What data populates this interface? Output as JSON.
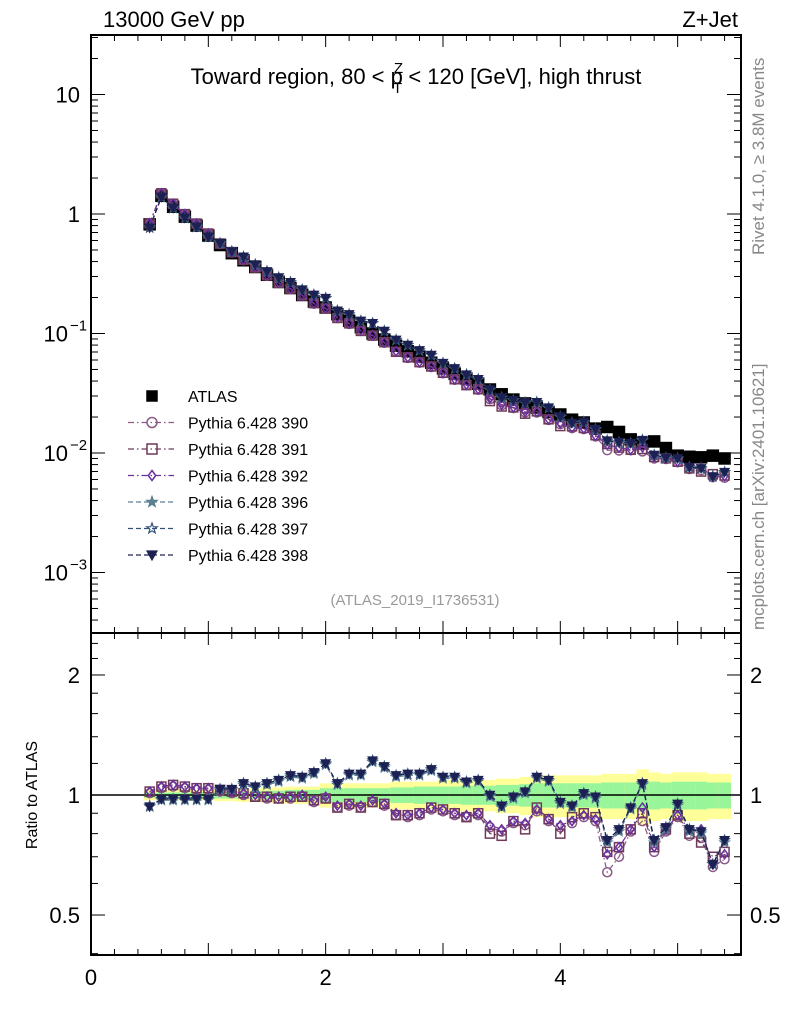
{
  "header": {
    "left": "13000 GeV pp",
    "right": "Z+Jet"
  },
  "side_text": {
    "top": "Rivet 4.1.0, ≥ 3.8M events",
    "bottom": "mcplots.cern.ch [arXiv:2401.10621]"
  },
  "watermark": "(ATLAS_2019_I1736531)",
  "chart_data": {
    "type": "scatter",
    "title": {
      "prefix": "Toward region, 80 < p",
      "sup": "Z",
      "sub": "T",
      "suffix": " < 120 [GeV], high thrust"
    },
    "xlabel": "",
    "ylabel": "",
    "ratio_ylabel": "Ratio to ATLAS",
    "xlim": [
      0,
      5.54
    ],
    "ylim": [
      0.00031,
      31
    ],
    "yscale": "log",
    "ratio_ylim": [
      0.4,
      2.55
    ],
    "ratio_yscale": "log",
    "x_ticks": [
      "0",
      "2",
      "4"
    ],
    "x_tick_values": [
      0,
      2,
      4
    ],
    "y_ticks": [
      {
        "v": 10,
        "base": "10",
        "exp": ""
      },
      {
        "v": 1,
        "base": "1",
        "exp": ""
      },
      {
        "v": 0.1,
        "base": "10",
        "exp": "−1"
      },
      {
        "v": 0.01,
        "base": "10",
        "exp": "−2"
      },
      {
        "v": 0.001,
        "base": "10",
        "exp": "−3"
      }
    ],
    "ratio_ticks": [
      {
        "v": 0.5,
        "label": "0.5"
      },
      {
        "v": 1,
        "label": "1"
      },
      {
        "v": 2,
        "label": "2"
      }
    ],
    "legend_position": "middle-left",
    "x": [
      0.5,
      0.6,
      0.7,
      0.8,
      0.9,
      1.0,
      1.1,
      1.2,
      1.3,
      1.4,
      1.5,
      1.6,
      1.7,
      1.8,
      1.9,
      2.0,
      2.1,
      2.2,
      2.3,
      2.4,
      2.5,
      2.6,
      2.7,
      2.8,
      2.9,
      3.0,
      3.1,
      3.2,
      3.3,
      3.4,
      3.5,
      3.6,
      3.7,
      3.8,
      3.9,
      4.0,
      4.1,
      4.2,
      4.3,
      4.4,
      4.5,
      4.6,
      4.7,
      4.8,
      4.9,
      5.0,
      5.1,
      5.2,
      5.3,
      5.4
    ],
    "data": {
      "name": "ATLAS",
      "color": "#000000",
      "marker": "square-filled",
      "values": [
        0.82,
        1.42,
        1.15,
        0.95,
        0.8,
        0.66,
        0.55,
        0.47,
        0.41,
        0.36,
        0.31,
        0.27,
        0.24,
        0.21,
        0.185,
        0.165,
        0.145,
        0.128,
        0.113,
        0.1,
        0.089,
        0.079,
        0.071,
        0.064,
        0.057,
        0.051,
        0.046,
        0.042,
        0.038,
        0.034,
        0.031,
        0.028,
        0.026,
        0.024,
        0.022,
        0.021,
        0.019,
        0.018,
        0.016,
        0.0165,
        0.015,
        0.013,
        0.012,
        0.0125,
        0.011,
        0.0095,
        0.0093,
        0.0092,
        0.0095,
        0.009
      ],
      "band_total": [
        0.03,
        0.03,
        0.03,
        0.03,
        0.03,
        0.03,
        0.035,
        0.035,
        0.04,
        0.04,
        0.045,
        0.045,
        0.05,
        0.05,
        0.05,
        0.07,
        0.07,
        0.07,
        0.07,
        0.07,
        0.07,
        0.08,
        0.08,
        0.08,
        0.08,
        0.09,
        0.09,
        0.09,
        0.09,
        0.09,
        0.1,
        0.1,
        0.11,
        0.12,
        0.12,
        0.12,
        0.12,
        0.12,
        0.12,
        0.13,
        0.13,
        0.13,
        0.16,
        0.14,
        0.13,
        0.14,
        0.14,
        0.14,
        0.13,
        0.13
      ],
      "band_stat": [
        0.015,
        0.015,
        0.015,
        0.015,
        0.015,
        0.015,
        0.02,
        0.02,
        0.02,
        0.02,
        0.025,
        0.025,
        0.03,
        0.03,
        0.03,
        0.04,
        0.04,
        0.04,
        0.04,
        0.04,
        0.04,
        0.045,
        0.045,
        0.05,
        0.05,
        0.05,
        0.05,
        0.055,
        0.055,
        0.055,
        0.06,
        0.06,
        0.065,
        0.07,
        0.07,
        0.07,
        0.07,
        0.07,
        0.07,
        0.075,
        0.075,
        0.075,
        0.09,
        0.08,
        0.075,
        0.08,
        0.08,
        0.08,
        0.075,
        0.075
      ]
    },
    "series": [
      {
        "name": "Pythia 6.428 390",
        "color": "#8a5a88",
        "marker": "circle-open",
        "line": "dashdot",
        "ratio": [
          1.01,
          1.04,
          1.05,
          1.04,
          1.03,
          1.03,
          1.02,
          1.01,
          1.0,
          0.99,
          0.98,
          0.98,
          0.98,
          0.99,
          0.96,
          0.98,
          0.93,
          0.94,
          0.93,
          0.96,
          0.94,
          0.89,
          0.88,
          0.89,
          0.92,
          0.91,
          0.89,
          0.88,
          0.89,
          0.83,
          0.81,
          0.85,
          0.84,
          0.91,
          0.86,
          0.83,
          0.85,
          0.88,
          0.86,
          0.64,
          0.7,
          0.81,
          0.86,
          0.72,
          0.81,
          0.88,
          0.79,
          0.78,
          0.66,
          0.69
        ]
      },
      {
        "name": "Pythia 6.428 391",
        "color": "#6e3a58",
        "marker": "square-open",
        "line": "dashdot",
        "ratio": [
          1.02,
          1.05,
          1.06,
          1.05,
          1.04,
          1.04,
          1.03,
          1.02,
          1.01,
          0.99,
          0.99,
          0.98,
          0.99,
          0.99,
          0.97,
          0.98,
          0.93,
          0.95,
          0.93,
          0.96,
          0.95,
          0.89,
          0.89,
          0.9,
          0.93,
          0.92,
          0.9,
          0.88,
          0.9,
          0.8,
          0.79,
          0.86,
          0.82,
          0.93,
          0.87,
          0.8,
          0.88,
          0.9,
          0.88,
          0.72,
          0.74,
          0.82,
          0.9,
          0.74,
          0.82,
          0.89,
          0.8,
          0.76,
          0.7,
          0.72
        ]
      },
      {
        "name": "Pythia 6.428 392",
        "color": "#6a2fa0",
        "marker": "diamond-open",
        "line": "dashdot",
        "ratio": [
          1.02,
          1.05,
          1.06,
          1.05,
          1.04,
          1.04,
          1.03,
          1.02,
          1.01,
          1.0,
          0.99,
          0.99,
          0.99,
          1.0,
          0.97,
          0.99,
          0.94,
          0.95,
          0.94,
          0.97,
          0.95,
          0.9,
          0.89,
          0.9,
          0.93,
          0.92,
          0.9,
          0.89,
          0.9,
          0.84,
          0.82,
          0.86,
          0.85,
          0.92,
          0.87,
          0.84,
          0.86,
          0.89,
          0.87,
          0.71,
          0.74,
          0.82,
          0.93,
          0.74,
          0.82,
          0.89,
          0.82,
          0.82,
          0.67,
          0.71
        ]
      },
      {
        "name": "Pythia 6.428 396",
        "color": "#5a8092",
        "marker": "star-filled",
        "line": "dashed",
        "ratio": [
          0.94,
          0.97,
          0.97,
          0.97,
          0.97,
          0.97,
          1.03,
          1.03,
          1.06,
          1.04,
          1.06,
          1.08,
          1.11,
          1.1,
          1.13,
          1.19,
          1.06,
          1.12,
          1.12,
          1.21,
          1.17,
          1.11,
          1.12,
          1.12,
          1.15,
          1.1,
          1.1,
          1.07,
          1.08,
          0.99,
          0.93,
          0.98,
          1.01,
          1.1,
          1.08,
          0.95,
          0.93,
          1.0,
          0.98,
          0.76,
          0.81,
          0.92,
          1.06,
          0.76,
          0.82,
          0.94,
          0.81,
          0.8,
          0.67,
          0.76
        ]
      },
      {
        "name": "Pythia 6.428 397",
        "color": "#34527a",
        "marker": "star-open",
        "line": "dashed",
        "ratio": [
          0.935,
          0.977,
          0.977,
          0.977,
          0.977,
          0.977,
          1.035,
          1.035,
          1.07,
          1.05,
          1.07,
          1.09,
          1.12,
          1.11,
          1.14,
          1.2,
          1.07,
          1.13,
          1.13,
          1.22,
          1.18,
          1.12,
          1.13,
          1.13,
          1.16,
          1.11,
          1.11,
          1.08,
          1.09,
          1.0,
          0.94,
          0.99,
          1.02,
          1.11,
          1.09,
          0.96,
          0.94,
          1.01,
          0.99,
          0.77,
          0.82,
          0.93,
          1.07,
          0.77,
          0.83,
          0.95,
          0.82,
          0.81,
          0.67,
          0.77
        ]
      },
      {
        "name": "Pythia 6.428 398",
        "color": "#1c2052",
        "marker": "triangle-down-filled",
        "line": "dashed",
        "ratio": [
          0.935,
          0.977,
          0.977,
          0.977,
          0.977,
          0.977,
          1.035,
          1.035,
          1.07,
          1.05,
          1.07,
          1.09,
          1.12,
          1.11,
          1.14,
          1.2,
          1.07,
          1.13,
          1.13,
          1.22,
          1.18,
          1.12,
          1.13,
          1.13,
          1.16,
          1.11,
          1.11,
          1.08,
          1.09,
          1.0,
          0.94,
          0.99,
          1.02,
          1.11,
          1.09,
          0.96,
          0.94,
          1.01,
          0.99,
          0.77,
          0.82,
          0.93,
          1.07,
          0.77,
          0.83,
          0.95,
          0.82,
          0.81,
          0.67,
          0.77
        ]
      }
    ]
  }
}
